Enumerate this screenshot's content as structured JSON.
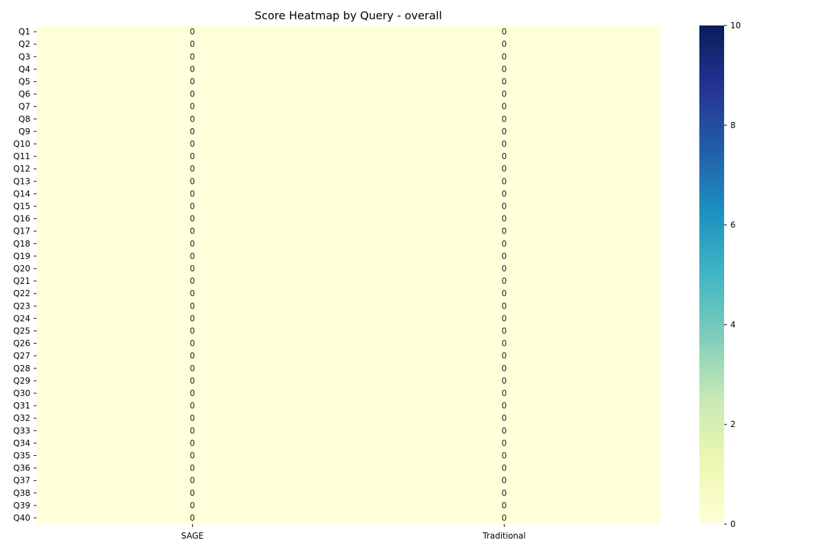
{
  "chart_data": {
    "type": "heatmap",
    "title": "Score Heatmap by Query - overall",
    "columns": [
      "SAGE",
      "Traditional"
    ],
    "rows": [
      "Q1",
      "Q2",
      "Q3",
      "Q4",
      "Q5",
      "Q6",
      "Q7",
      "Q8",
      "Q9",
      "Q10",
      "Q11",
      "Q12",
      "Q13",
      "Q14",
      "Q15",
      "Q16",
      "Q17",
      "Q18",
      "Q19",
      "Q20",
      "Q21",
      "Q22",
      "Q23",
      "Q24",
      "Q25",
      "Q26",
      "Q27",
      "Q28",
      "Q29",
      "Q30",
      "Q31",
      "Q32",
      "Q33",
      "Q34",
      "Q35",
      "Q36",
      "Q37",
      "Q38",
      "Q39",
      "Q40"
    ],
    "values": [
      [
        0,
        0
      ],
      [
        0,
        0
      ],
      [
        0,
        0
      ],
      [
        0,
        0
      ],
      [
        0,
        0
      ],
      [
        0,
        0
      ],
      [
        0,
        0
      ],
      [
        0,
        0
      ],
      [
        0,
        0
      ],
      [
        0,
        0
      ],
      [
        0,
        0
      ],
      [
        0,
        0
      ],
      [
        0,
        0
      ],
      [
        0,
        0
      ],
      [
        0,
        0
      ],
      [
        0,
        0
      ],
      [
        0,
        0
      ],
      [
        0,
        0
      ],
      [
        0,
        0
      ],
      [
        0,
        0
      ],
      [
        0,
        0
      ],
      [
        0,
        0
      ],
      [
        0,
        0
      ],
      [
        0,
        0
      ],
      [
        0,
        0
      ],
      [
        0,
        0
      ],
      [
        0,
        0
      ],
      [
        0,
        0
      ],
      [
        0,
        0
      ],
      [
        0,
        0
      ],
      [
        0,
        0
      ],
      [
        0,
        0
      ],
      [
        0,
        0
      ],
      [
        0,
        0
      ],
      [
        0,
        0
      ],
      [
        0,
        0
      ],
      [
        0,
        0
      ],
      [
        0,
        0
      ],
      [
        0,
        0
      ],
      [
        0,
        0
      ]
    ],
    "colorscale": "YlGnBu",
    "vmin": 0,
    "vmax": 10,
    "colorbar_ticks": [
      0,
      2,
      4,
      6,
      8,
      10
    ],
    "annotated": true
  }
}
